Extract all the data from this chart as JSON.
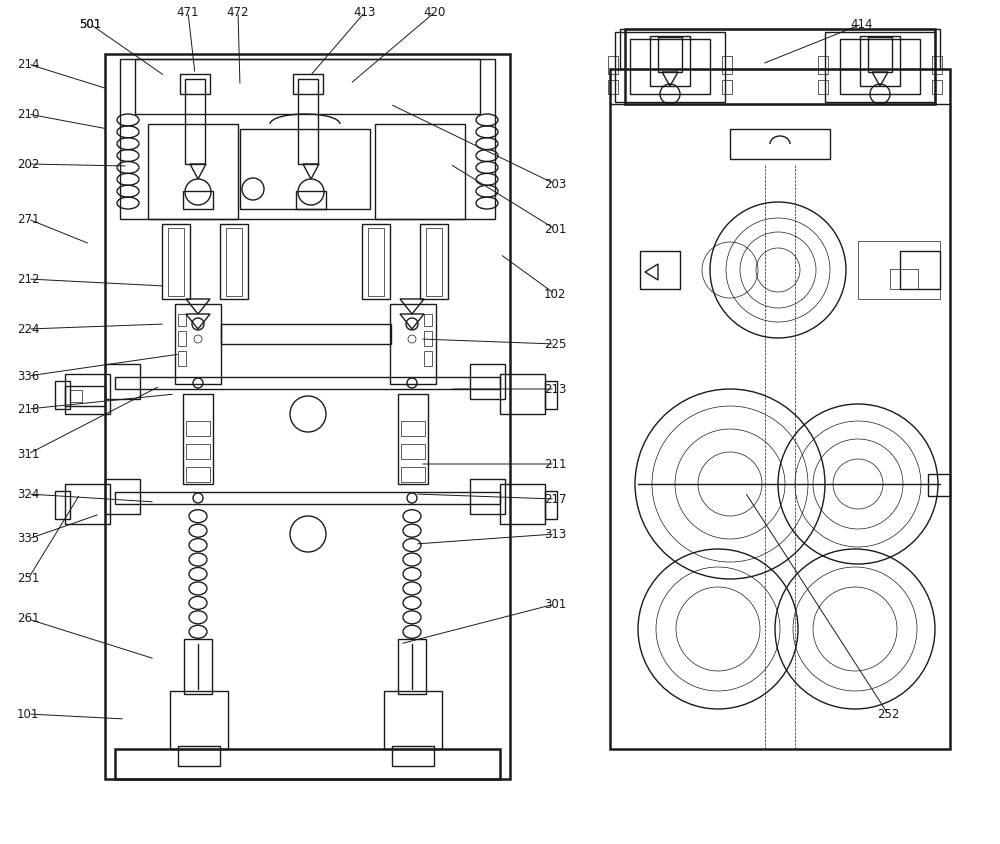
{
  "figure_width": 10.0,
  "figure_height": 8.44,
  "dpi": 100,
  "bg_color": "#ffffff",
  "line_color": "#1a1a1a",
  "lw_thick": 1.8,
  "lw_med": 1.0,
  "lw_thin": 0.5,
  "label_fontsize": 8.5,
  "label_color": "#1a1a1a"
}
